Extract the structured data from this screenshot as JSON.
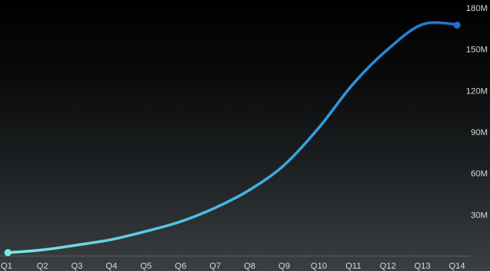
{
  "chart_data": {
    "type": "line",
    "title": "",
    "xlabel": "",
    "ylabel": "",
    "categories": [
      "Q1",
      "Q2",
      "Q3",
      "Q4",
      "Q5",
      "Q6",
      "Q7",
      "Q8",
      "Q9",
      "Q10",
      "Q11",
      "Q12",
      "Q13",
      "Q14"
    ],
    "y_ticks": [
      "30M",
      "60M",
      "90M",
      "120M",
      "150M",
      "180M"
    ],
    "y_tick_values": [
      30,
      60,
      90,
      120,
      150,
      180
    ],
    "ylim": [
      0,
      180
    ],
    "grid": false,
    "legend": "none",
    "series": [
      {
        "values": [
          2.5,
          4.5,
          8,
          12,
          18,
          25,
          35,
          48,
          66,
          93,
          125,
          150,
          167,
          167.5
        ],
        "curve_values": [
          2.5,
          4.5,
          8,
          12,
          18,
          25,
          35,
          48,
          66,
          93,
          125,
          150,
          168,
          168
        ],
        "color_start": "#7be8e6",
        "color_end": "#1f6fc9"
      }
    ],
    "colors": {
      "axis_line": "#5a5f62",
      "tick_text": "#d6d8da",
      "start_marker": "#7be8e6",
      "end_marker": "#1f6fc9"
    }
  }
}
